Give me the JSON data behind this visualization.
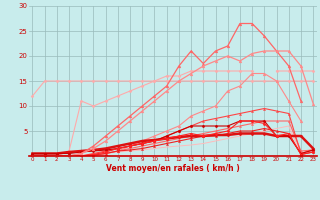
{
  "xlabel": "Vent moyen/en rafales ( km/h )",
  "background_color": "#c8ecec",
  "grid_color": "#99bbbb",
  "x_ticks": [
    0,
    1,
    2,
    3,
    4,
    5,
    6,
    7,
    8,
    9,
    10,
    11,
    12,
    13,
    14,
    15,
    16,
    17,
    18,
    19,
    20,
    21,
    22,
    23
  ],
  "ylim": [
    0,
    30
  ],
  "xlim": [
    -0.3,
    23.3
  ],
  "series": [
    {
      "x": [
        0,
        1,
        2,
        3,
        4,
        5,
        6,
        7,
        8,
        9,
        10,
        11,
        12,
        13,
        14,
        15,
        16,
        17,
        18,
        19,
        20,
        21,
        22,
        23
      ],
      "y": [
        0,
        0,
        0,
        0,
        0.2,
        0.3,
        0.5,
        0.8,
        1.0,
        1.2,
        1.5,
        1.8,
        2.0,
        2.2,
        2.5,
        3.0,
        3.5,
        4.0,
        4.5,
        5.0,
        5.5,
        6.0,
        0.5,
        1.5
      ],
      "color": "#ffbbbb",
      "lw": 0.7,
      "marker": null,
      "ms": 0
    },
    {
      "x": [
        0,
        1,
        2,
        3,
        4,
        5,
        6,
        7,
        8,
        9,
        10,
        11,
        12,
        13,
        14,
        15,
        16,
        17,
        18,
        19,
        20,
        21,
        22,
        23
      ],
      "y": [
        12,
        15,
        15,
        15,
        15,
        15,
        15,
        15,
        15,
        15,
        15,
        15,
        15,
        15,
        15,
        15,
        15,
        15,
        15,
        15,
        15,
        15,
        15,
        15
      ],
      "color": "#ffaaaa",
      "lw": 0.8,
      "marker": "D",
      "ms": 1.5
    },
    {
      "x": [
        0,
        1,
        2,
        3,
        4,
        5,
        6,
        7,
        8,
        9,
        10,
        11,
        12,
        13,
        14,
        15,
        16,
        17,
        18,
        19,
        20,
        21,
        22,
        23
      ],
      "y": [
        0,
        0,
        0,
        1,
        11,
        10,
        11,
        12,
        13,
        14,
        15,
        16,
        16,
        17,
        17,
        17,
        17,
        17,
        17,
        null,
        17,
        17,
        17,
        17
      ],
      "color": "#ffaaaa",
      "lw": 0.8,
      "marker": "D",
      "ms": 1.5
    },
    {
      "x": [
        1,
        2,
        3,
        4,
        5,
        6,
        7,
        8,
        9,
        10,
        11,
        12,
        13,
        14,
        15,
        16,
        17,
        18,
        19,
        20,
        21,
        22,
        23
      ],
      "y": [
        0,
        0,
        0,
        0,
        0,
        0.5,
        1,
        2,
        3,
        4,
        5,
        6,
        8,
        9,
        10,
        13,
        14,
        16.5,
        16.5,
        15,
        11,
        7,
        null
      ],
      "color": "#ff8888",
      "lw": 0.8,
      "marker": "^",
      "ms": 2
    },
    {
      "x": [
        0,
        1,
        2,
        3,
        4,
        5,
        6,
        7,
        8,
        9,
        10,
        11,
        12,
        13,
        14,
        15,
        16,
        17,
        18,
        19,
        20,
        21,
        22,
        23
      ],
      "y": [
        0,
        0,
        0,
        0,
        0,
        0.2,
        0.5,
        1,
        1.5,
        2,
        2.5,
        3,
        3.5,
        4,
        4.5,
        5,
        5.5,
        6,
        6.5,
        7,
        7,
        7,
        1,
        1.2
      ],
      "color": "#ff6666",
      "lw": 0.8,
      "marker": "^",
      "ms": 1.5
    },
    {
      "x": [
        0,
        1,
        2,
        3,
        4,
        5,
        6,
        7,
        8,
        9,
        10,
        11,
        12,
        13,
        14,
        15,
        16,
        17,
        18,
        19,
        20,
        21,
        22,
        23
      ],
      "y": [
        0,
        0,
        0,
        0,
        0,
        0.5,
        1,
        1.5,
        2,
        2.5,
        3,
        4,
        5,
        6,
        7,
        7.5,
        8,
        8.5,
        9,
        9.5,
        9,
        8.5,
        0.5,
        1.2
      ],
      "color": "#ff4444",
      "lw": 0.8,
      "marker": "^",
      "ms": 1.5
    },
    {
      "x": [
        0,
        1,
        2,
        3,
        4,
        5,
        6,
        7,
        8,
        9,
        10,
        11,
        12,
        13,
        14,
        15,
        16,
        17,
        18,
        19,
        20,
        21,
        22,
        23
      ],
      "y": [
        0,
        0,
        0,
        0,
        0,
        0.2,
        0.5,
        1,
        1.2,
        1.5,
        2,
        2.5,
        3,
        3.5,
        4,
        4,
        4.5,
        5,
        5,
        5.5,
        5,
        4.5,
        0.3,
        0.8
      ],
      "color": "#ee2222",
      "lw": 0.8,
      "marker": "^",
      "ms": 1.5
    },
    {
      "x": [
        0,
        1,
        2,
        3,
        4,
        5,
        6,
        7,
        8,
        9,
        10,
        11,
        12,
        13,
        14,
        15,
        16,
        17,
        18,
        19,
        20,
        21,
        22,
        23
      ],
      "y": [
        0.5,
        0.5,
        0.5,
        0.8,
        1,
        1.2,
        1.5,
        2,
        2.5,
        3,
        3.2,
        3.5,
        3.8,
        4,
        4,
        4.2,
        4.2,
        4.5,
        4.5,
        4.5,
        4,
        4,
        4,
        1.5
      ],
      "color": "#dd1111",
      "lw": 1.8,
      "marker": "D",
      "ms": 1.5
    },
    {
      "x": [
        0,
        1,
        2,
        3,
        4,
        5,
        6,
        7,
        8,
        9,
        10,
        11,
        12,
        13,
        14,
        15,
        16,
        17,
        18,
        19,
        20,
        21,
        22,
        23
      ],
      "y": [
        0.5,
        0.5,
        0.5,
        0.5,
        0.8,
        1,
        1.2,
        1.5,
        2,
        2.5,
        3,
        4,
        5,
        6,
        6,
        6,
        6,
        7,
        7,
        7,
        4,
        4,
        0.5,
        1.2
      ],
      "color": "#cc0000",
      "lw": 0.8,
      "marker": "D",
      "ms": 1.5
    },
    {
      "x": [
        0,
        1,
        2,
        3,
        4,
        5,
        6,
        7,
        8,
        9,
        10,
        11,
        12,
        13,
        14,
        15,
        16,
        17,
        18,
        19,
        20,
        21,
        22,
        23
      ],
      "y": [
        0,
        0,
        0,
        0,
        0,
        0.3,
        0.8,
        1.5,
        2,
        2.5,
        3,
        3.5,
        4,
        4.5,
        4,
        4.5,
        5,
        7,
        7,
        6.5,
        4,
        4.5,
        0.3,
        0.8
      ],
      "color": "#ff2222",
      "lw": 0.8,
      "marker": "D",
      "ms": 1.5
    },
    {
      "x": [
        0,
        2,
        3,
        4,
        5,
        6,
        7,
        8,
        9,
        10,
        11,
        12,
        13,
        14,
        15,
        16,
        17,
        18,
        19,
        20,
        21,
        22
      ],
      "y": [
        0,
        0,
        0,
        0.5,
        2,
        4,
        6,
        8,
        10,
        12,
        14,
        18,
        21,
        18.5,
        21,
        22,
        26.5,
        26.5,
        24,
        21,
        18,
        11
      ],
      "color": "#ff6666",
      "lw": 0.9,
      "marker": "^",
      "ms": 2
    },
    {
      "x": [
        0,
        2,
        3,
        4,
        5,
        6,
        7,
        8,
        9,
        10,
        11,
        12,
        13,
        14,
        15,
        16,
        17,
        18,
        19,
        20,
        21,
        22,
        23
      ],
      "y": [
        0,
        0,
        0,
        0.5,
        1.5,
        3,
        5,
        7,
        9,
        11,
        13,
        15,
        16.5,
        18,
        19,
        20,
        19,
        20.5,
        21,
        21,
        21,
        18,
        10.5
      ],
      "color": "#ff8888",
      "lw": 0.9,
      "marker": "^",
      "ms": 2
    }
  ]
}
